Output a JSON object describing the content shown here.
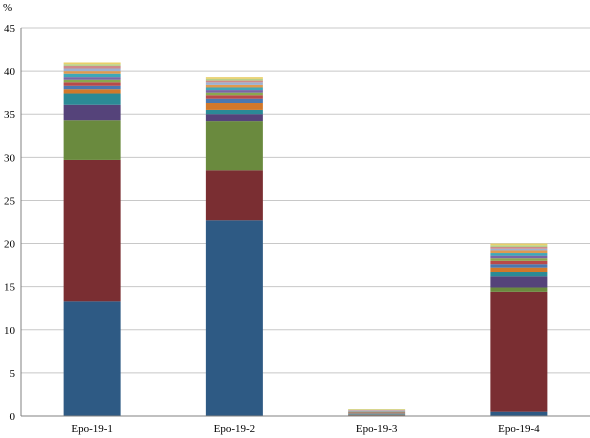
{
  "chart_data": {
    "type": "bar",
    "stacked": true,
    "y_unit_label": "%",
    "ylim": [
      0,
      45
    ],
    "y_ticks": [
      0,
      5,
      10,
      15,
      20,
      25,
      30,
      35,
      40,
      45
    ],
    "grid": true,
    "legend": "none",
    "categories": [
      "Epo-19-1",
      "Epo-19-2",
      "Epo-19-3",
      "Epo-19-4"
    ],
    "series": [
      {
        "color": "#2e5a84",
        "values": [
          13.3,
          22.7,
          0.05,
          0.5
        ]
      },
      {
        "color": "#7a2e32",
        "values": [
          16.4,
          5.8,
          0.05,
          13.9
        ]
      },
      {
        "color": "#6a8a3e",
        "values": [
          4.6,
          5.7,
          0.05,
          0.5
        ]
      },
      {
        "color": "#55437a",
        "values": [
          1.8,
          0.8,
          0.05,
          1.3
        ]
      },
      {
        "color": "#2b8a96",
        "values": [
          1.3,
          0.5,
          0.05,
          0.5
        ]
      },
      {
        "color": "#d2782a",
        "values": [
          0.5,
          0.8,
          0.05,
          0.5
        ]
      },
      {
        "color": "#4a78b0",
        "values": [
          0.4,
          0.5,
          0.05,
          0.4
        ]
      },
      {
        "color": "#b84a4a",
        "values": [
          0.4,
          0.4,
          0.05,
          0.4
        ]
      },
      {
        "color": "#8aa84e",
        "values": [
          0.3,
          0.3,
          0.05,
          0.3
        ]
      },
      {
        "color": "#7b64a6",
        "values": [
          0.3,
          0.3,
          0.05,
          0.3
        ]
      },
      {
        "color": "#3fa8b8",
        "values": [
          0.4,
          0.3,
          0.05,
          0.3
        ]
      },
      {
        "color": "#e09a50",
        "values": [
          0.3,
          0.3,
          0.05,
          0.3
        ]
      },
      {
        "color": "#9db0d0",
        "values": [
          0.3,
          0.3,
          0.05,
          0.2
        ]
      },
      {
        "color": "#cf8a8a",
        "values": [
          0.3,
          0.2,
          0.05,
          0.2
        ]
      },
      {
        "color": "#b7cf8a",
        "values": [
          0.2,
          0.2,
          0.05,
          0.2
        ]
      },
      {
        "color": "#e8d06a",
        "values": [
          0.2,
          0.2,
          0.05,
          0.2
        ]
      }
    ]
  }
}
